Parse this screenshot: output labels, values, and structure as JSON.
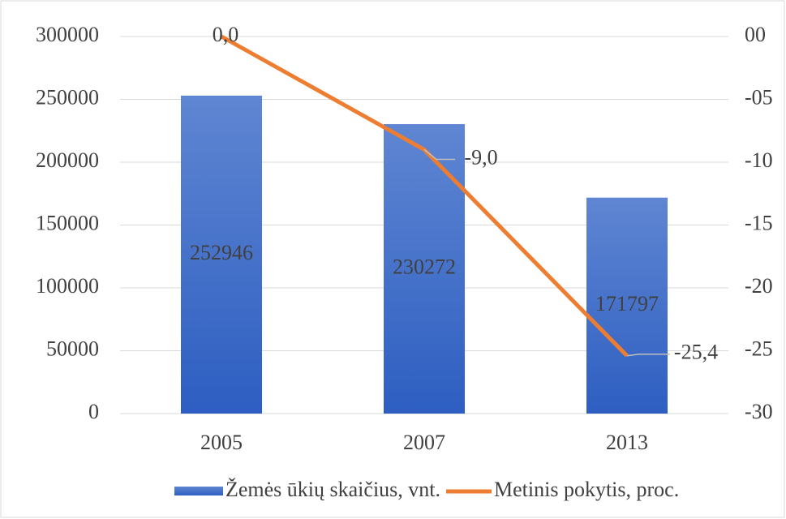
{
  "chart_data": {
    "type": "bar",
    "categories": [
      "2005",
      "2007",
      "2013"
    ],
    "series": [
      {
        "name": "Žemės ūkių skaičius, vnt.",
        "color": "#4472c4",
        "values": [
          252946,
          230272,
          171797
        ]
      },
      {
        "name": "Metinis pokytis, proc.",
        "type": "line",
        "axis": "y2",
        "color": "#ed7d31",
        "values": [
          0,
          -9,
          -25.4
        ],
        "value_labels": [
          "0,0",
          "-9,0",
          "-25,4"
        ]
      }
    ],
    "ylim": [
      0,
      300000
    ],
    "yticks": [
      0,
      50000,
      100000,
      150000,
      200000,
      250000,
      300000
    ],
    "y2lim": [
      -30,
      0
    ],
    "y2ticks": [
      {
        "value": 0,
        "label": "00"
      },
      {
        "value": -5,
        "label": "-05"
      },
      -10,
      -15,
      -20,
      -25,
      -30
    ],
    "grid": true,
    "legend": "bottom"
  }
}
